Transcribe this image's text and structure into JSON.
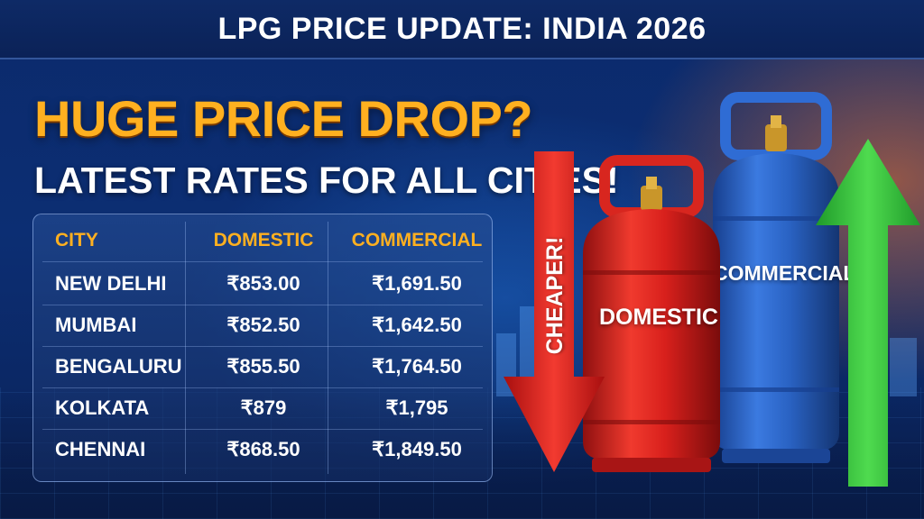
{
  "header": {
    "title": "LPG PRICE UPDATE: INDIA 2026"
  },
  "headline": "HUGE PRICE DROP?",
  "subheadline": "LATEST RATES FOR ALL CITIES!",
  "table": {
    "columns": [
      "CITY",
      "DOMESTIC",
      "COMMERCIAL"
    ],
    "rows": [
      {
        "city": "NEW DELHI",
        "domestic": "₹853.00",
        "commercial": "₹1,691.50"
      },
      {
        "city": "MUMBAI",
        "domestic": "₹852.50",
        "commercial": "₹1,642.50"
      },
      {
        "city": "BENGALURU",
        "domestic": "₹855.50",
        "commercial": "₹1,764.50"
      },
      {
        "city": "KOLKATA",
        "domestic": "₹879",
        "commercial": "₹1,795"
      },
      {
        "city": "CHENNAI",
        "domestic": "₹868.50",
        "commercial": "₹1,849.50"
      }
    ]
  },
  "illustration": {
    "down_arrow_label": "CHEAPER!",
    "domestic_cylinder_label": "DOMESTIC",
    "commercial_cylinder_label": "COMMERCIAL",
    "colors": {
      "domestic_cylinder": "#d8201c",
      "commercial_cylinder": "#2a63c4",
      "down_arrow": "#e51d1d",
      "up_arrow": "#33c63a",
      "accent": "#ffb020"
    }
  }
}
